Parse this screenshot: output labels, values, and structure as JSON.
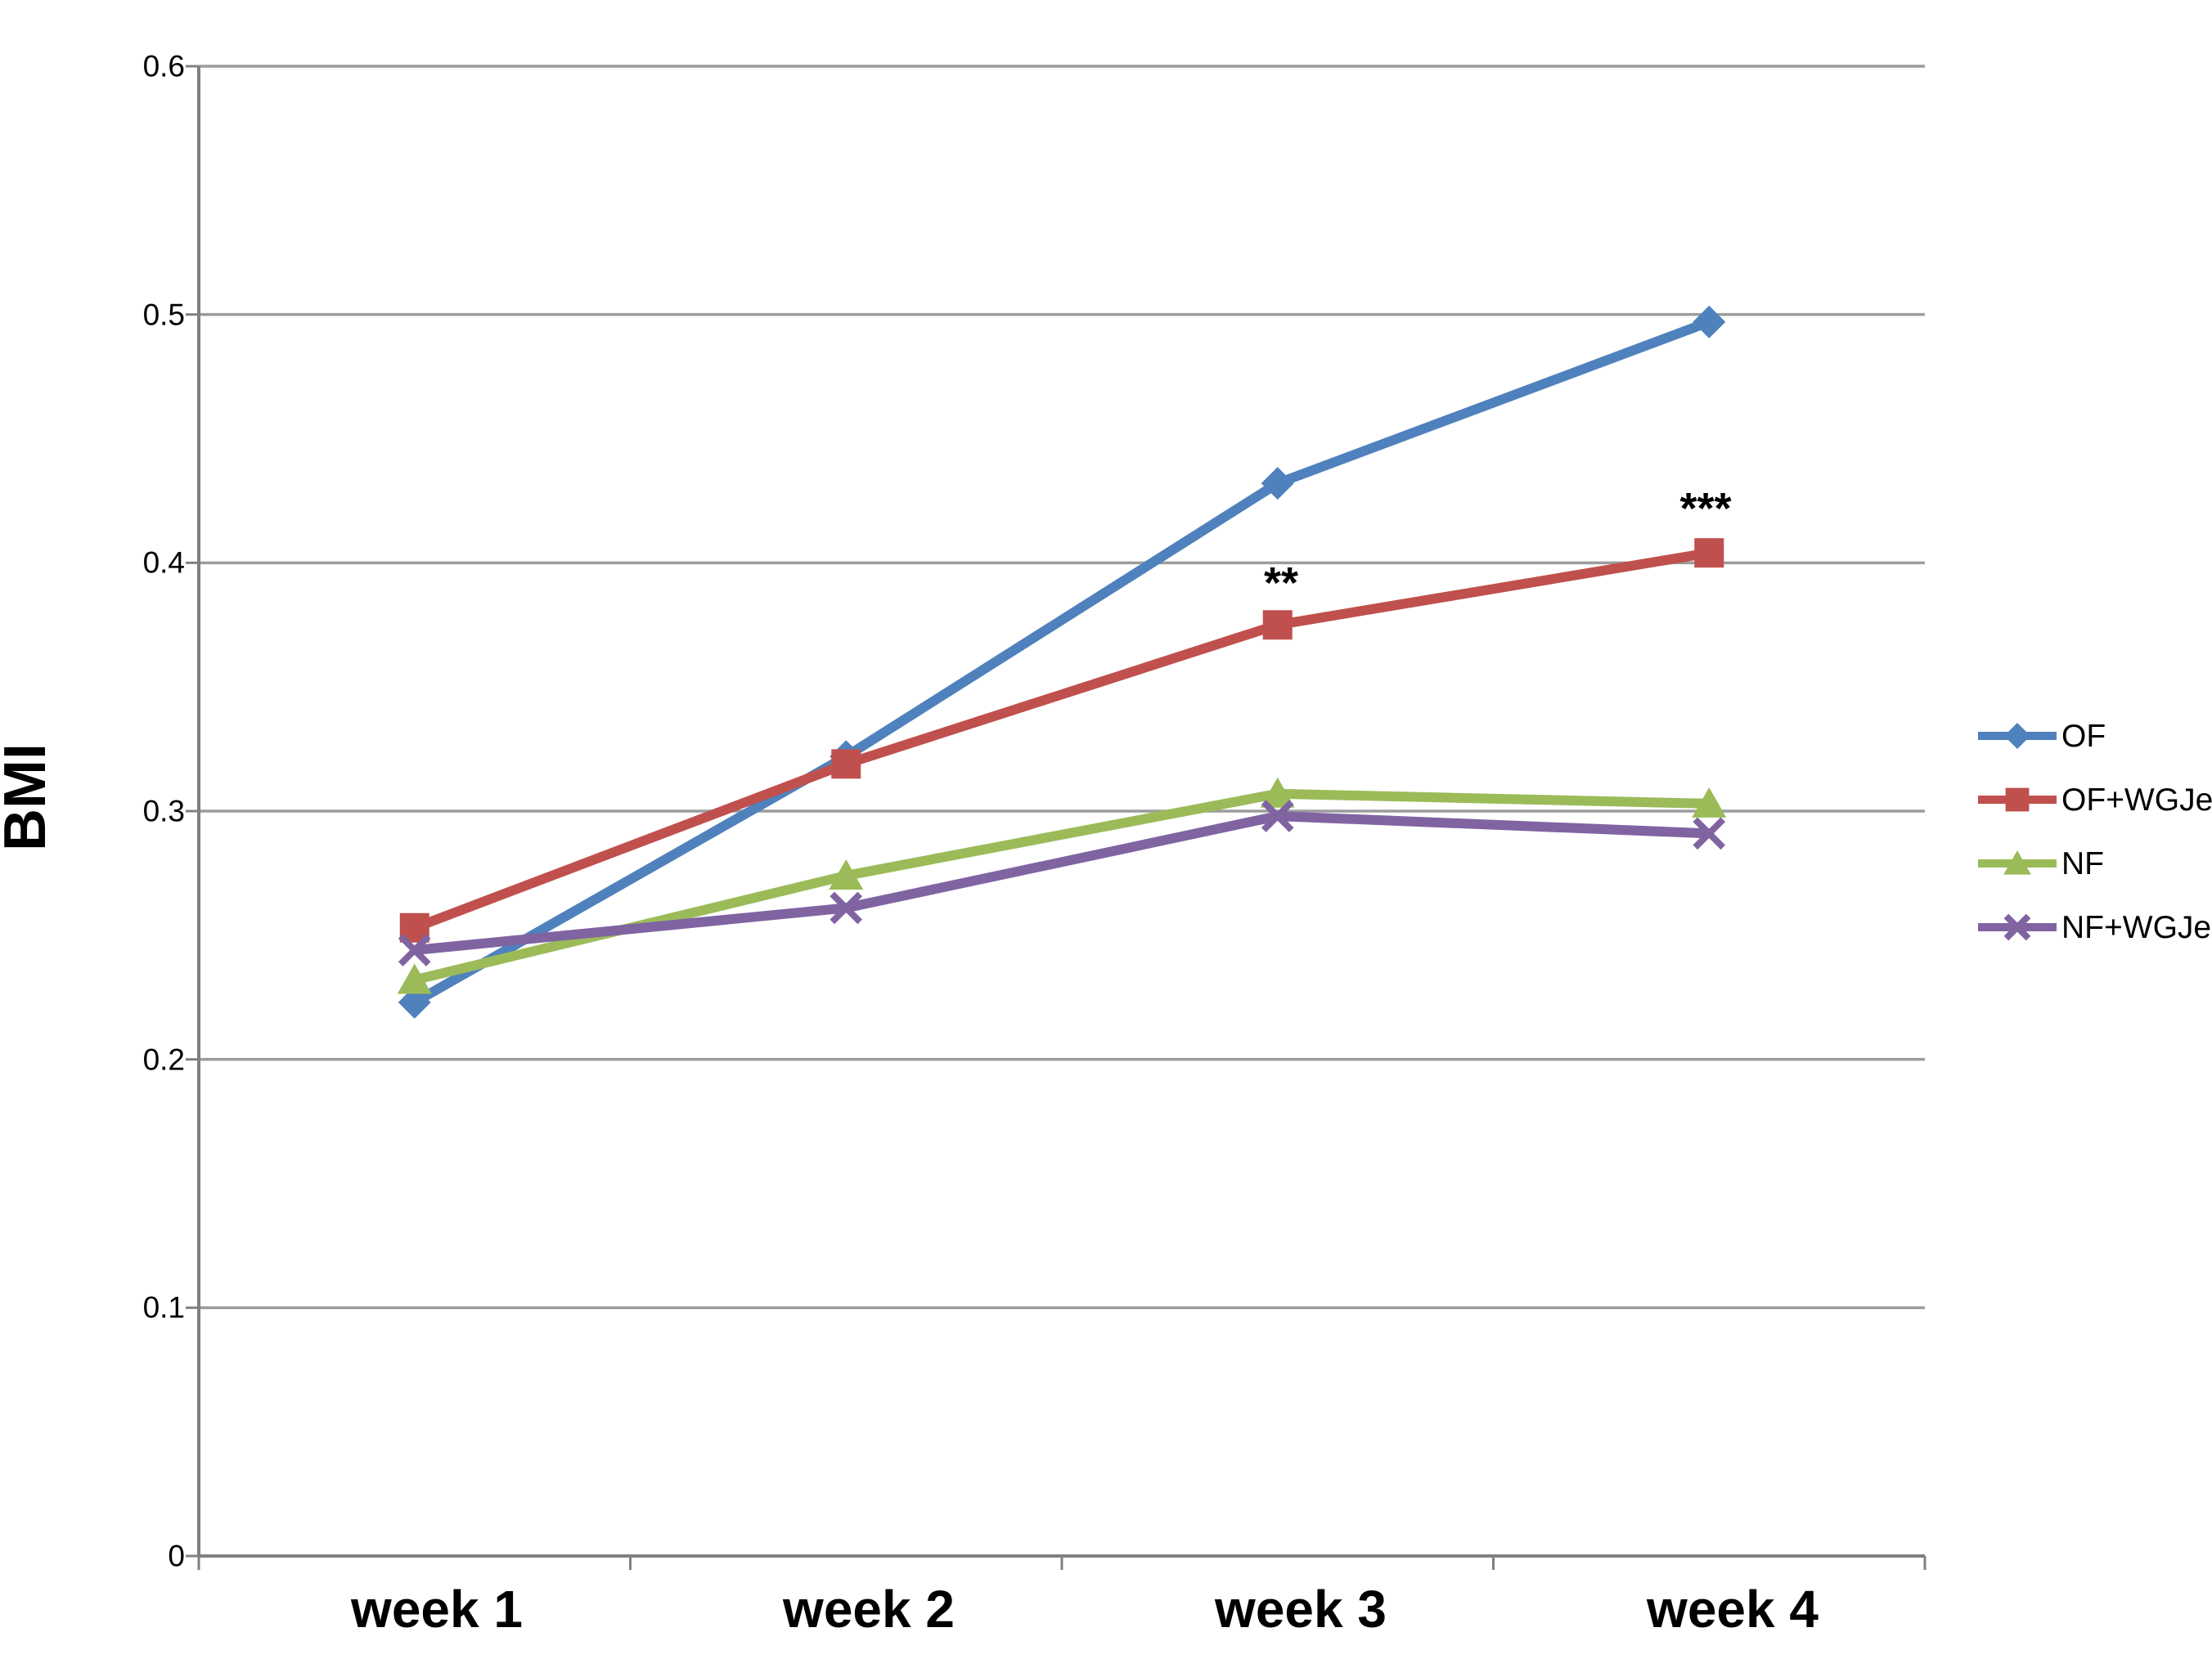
{
  "chart_data": {
    "type": "line",
    "title": "",
    "xlabel": "",
    "ylabel": "BMI",
    "categories": [
      "week 1",
      "week 2",
      "week 3",
      "week 4"
    ],
    "ylim": [
      0,
      0.6
    ],
    "yticks": [
      0,
      0.1,
      0.2,
      0.3,
      0.4,
      0.5,
      0.6
    ],
    "ytick_labels": [
      "0",
      "0.1",
      "0.2",
      "0.3",
      "0.4",
      "0.5",
      "0.6"
    ],
    "grid": true,
    "legend_position": "right",
    "series": [
      {
        "name": "OF",
        "marker": "diamond",
        "color": "#4f81bd",
        "values": [
          0.223,
          0.322,
          0.432,
          0.497
        ]
      },
      {
        "name": "OF+WGJe",
        "marker": "square",
        "color": "#c0504d",
        "values": [
          0.253,
          0.319,
          0.375,
          0.404
        ]
      },
      {
        "name": "NF",
        "marker": "triangle",
        "color": "#9bbb59",
        "values": [
          0.232,
          0.274,
          0.307,
          0.303
        ]
      },
      {
        "name": "NF+WGJe",
        "marker": "x",
        "color": "#8064a2",
        "values": [
          0.244,
          0.261,
          0.298,
          0.291
        ]
      }
    ],
    "annotations": [
      {
        "text": "**",
        "series": "OF+WGJe",
        "category_index": 2
      },
      {
        "text": "***",
        "series": "OF+WGJe",
        "category_index": 3
      }
    ],
    "colors": {
      "axis": "#808080",
      "gridline": "#9c9c9c",
      "text": "#000000",
      "background": "#ffffff"
    }
  }
}
